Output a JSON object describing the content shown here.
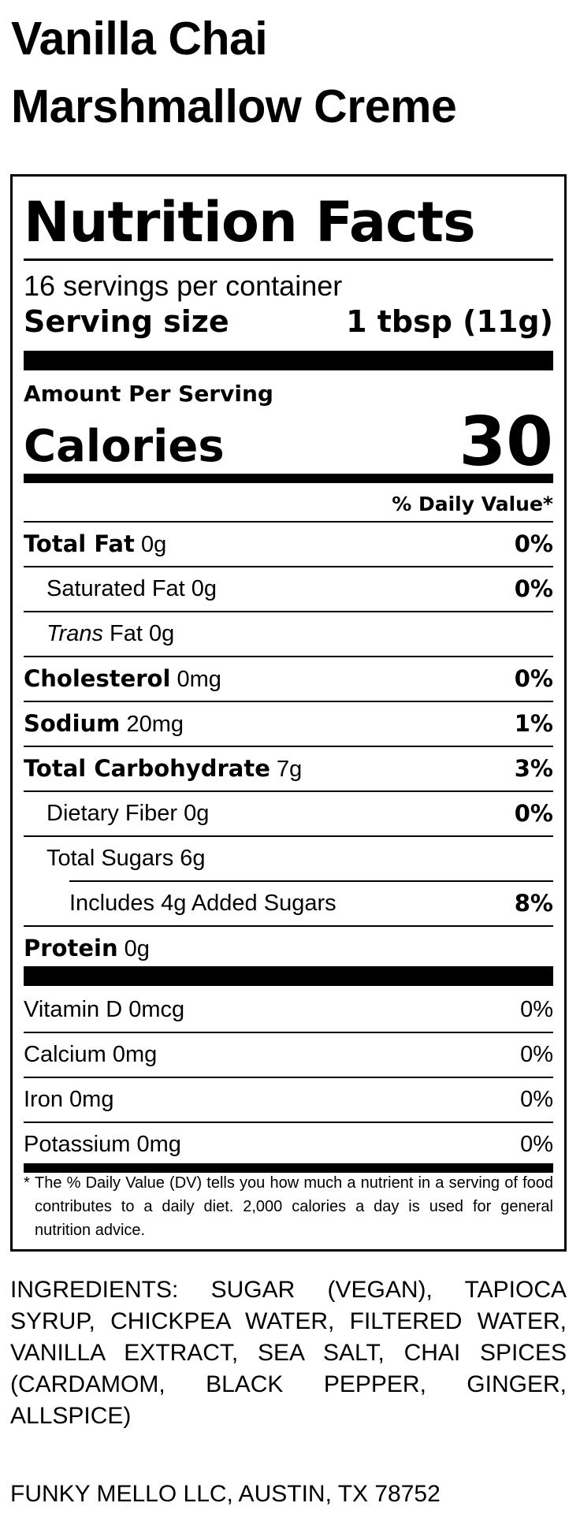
{
  "product": {
    "title_line1": "Vanilla Chai",
    "title_line2": "Marshmallow Creme"
  },
  "label": {
    "heading": "Nutrition Facts",
    "servings_per_container": "16 servings per container",
    "serving_size_label": "Serving size",
    "serving_size_value": "1 tbsp (11g)",
    "amount_per_serving": "Amount Per Serving",
    "calories_label": "Calories",
    "calories_value": "30",
    "daily_value_header": "% Daily Value*",
    "nutrients": [
      {
        "name": "Total Fat",
        "amount": "0g",
        "dv": "0%"
      },
      {
        "name": "Saturated Fat",
        "amount": "0g",
        "dv": "0%"
      },
      {
        "name_italic": "Trans",
        "name": "Fat",
        "amount": "0g"
      },
      {
        "name": "Cholesterol",
        "amount": "0mg",
        "dv": "0%"
      },
      {
        "name": "Sodium",
        "amount": "20mg",
        "dv": "1%"
      },
      {
        "name": "Total Carbohydrate",
        "amount": "7g",
        "dv": "3%"
      },
      {
        "name": "Dietary Fiber",
        "amount": "0g",
        "dv": "0%"
      },
      {
        "name": "Total Sugars",
        "amount": "6g"
      },
      {
        "prefix": "Includes",
        "amount": "4g",
        "name": "Added Sugars",
        "dv": "8%"
      },
      {
        "name": "Protein",
        "amount": "0g"
      }
    ],
    "vitamins": [
      {
        "name": "Vitamin D",
        "amount": "0mcg",
        "dv": "0%"
      },
      {
        "name": "Calcium",
        "amount": "0mg",
        "dv": "0%"
      },
      {
        "name": "Iron",
        "amount": "0mg",
        "dv": "0%"
      },
      {
        "name": "Potassium",
        "amount": "0mg",
        "dv": "0%"
      }
    ],
    "footnote_star": "*",
    "footnote": "The % Daily Value (DV) tells you how much a nutrient in a serving of food contributes to a daily diet. 2,000 calories a day is used for general nutrition advice."
  },
  "ingredients": "INGREDIENTS: SUGAR (VEGAN), TAPIOCA SYRUP, CHICKPEA WATER, FILTERED WATER, VANILLA EXTRACT, SEA SALT, CHAI SPICES (CARDAMOM, BLACK PEPPER, GINGER, ALLSPICE)",
  "manufacturer": "FUNKY MELLO LLC, AUSTIN, TX 78752"
}
